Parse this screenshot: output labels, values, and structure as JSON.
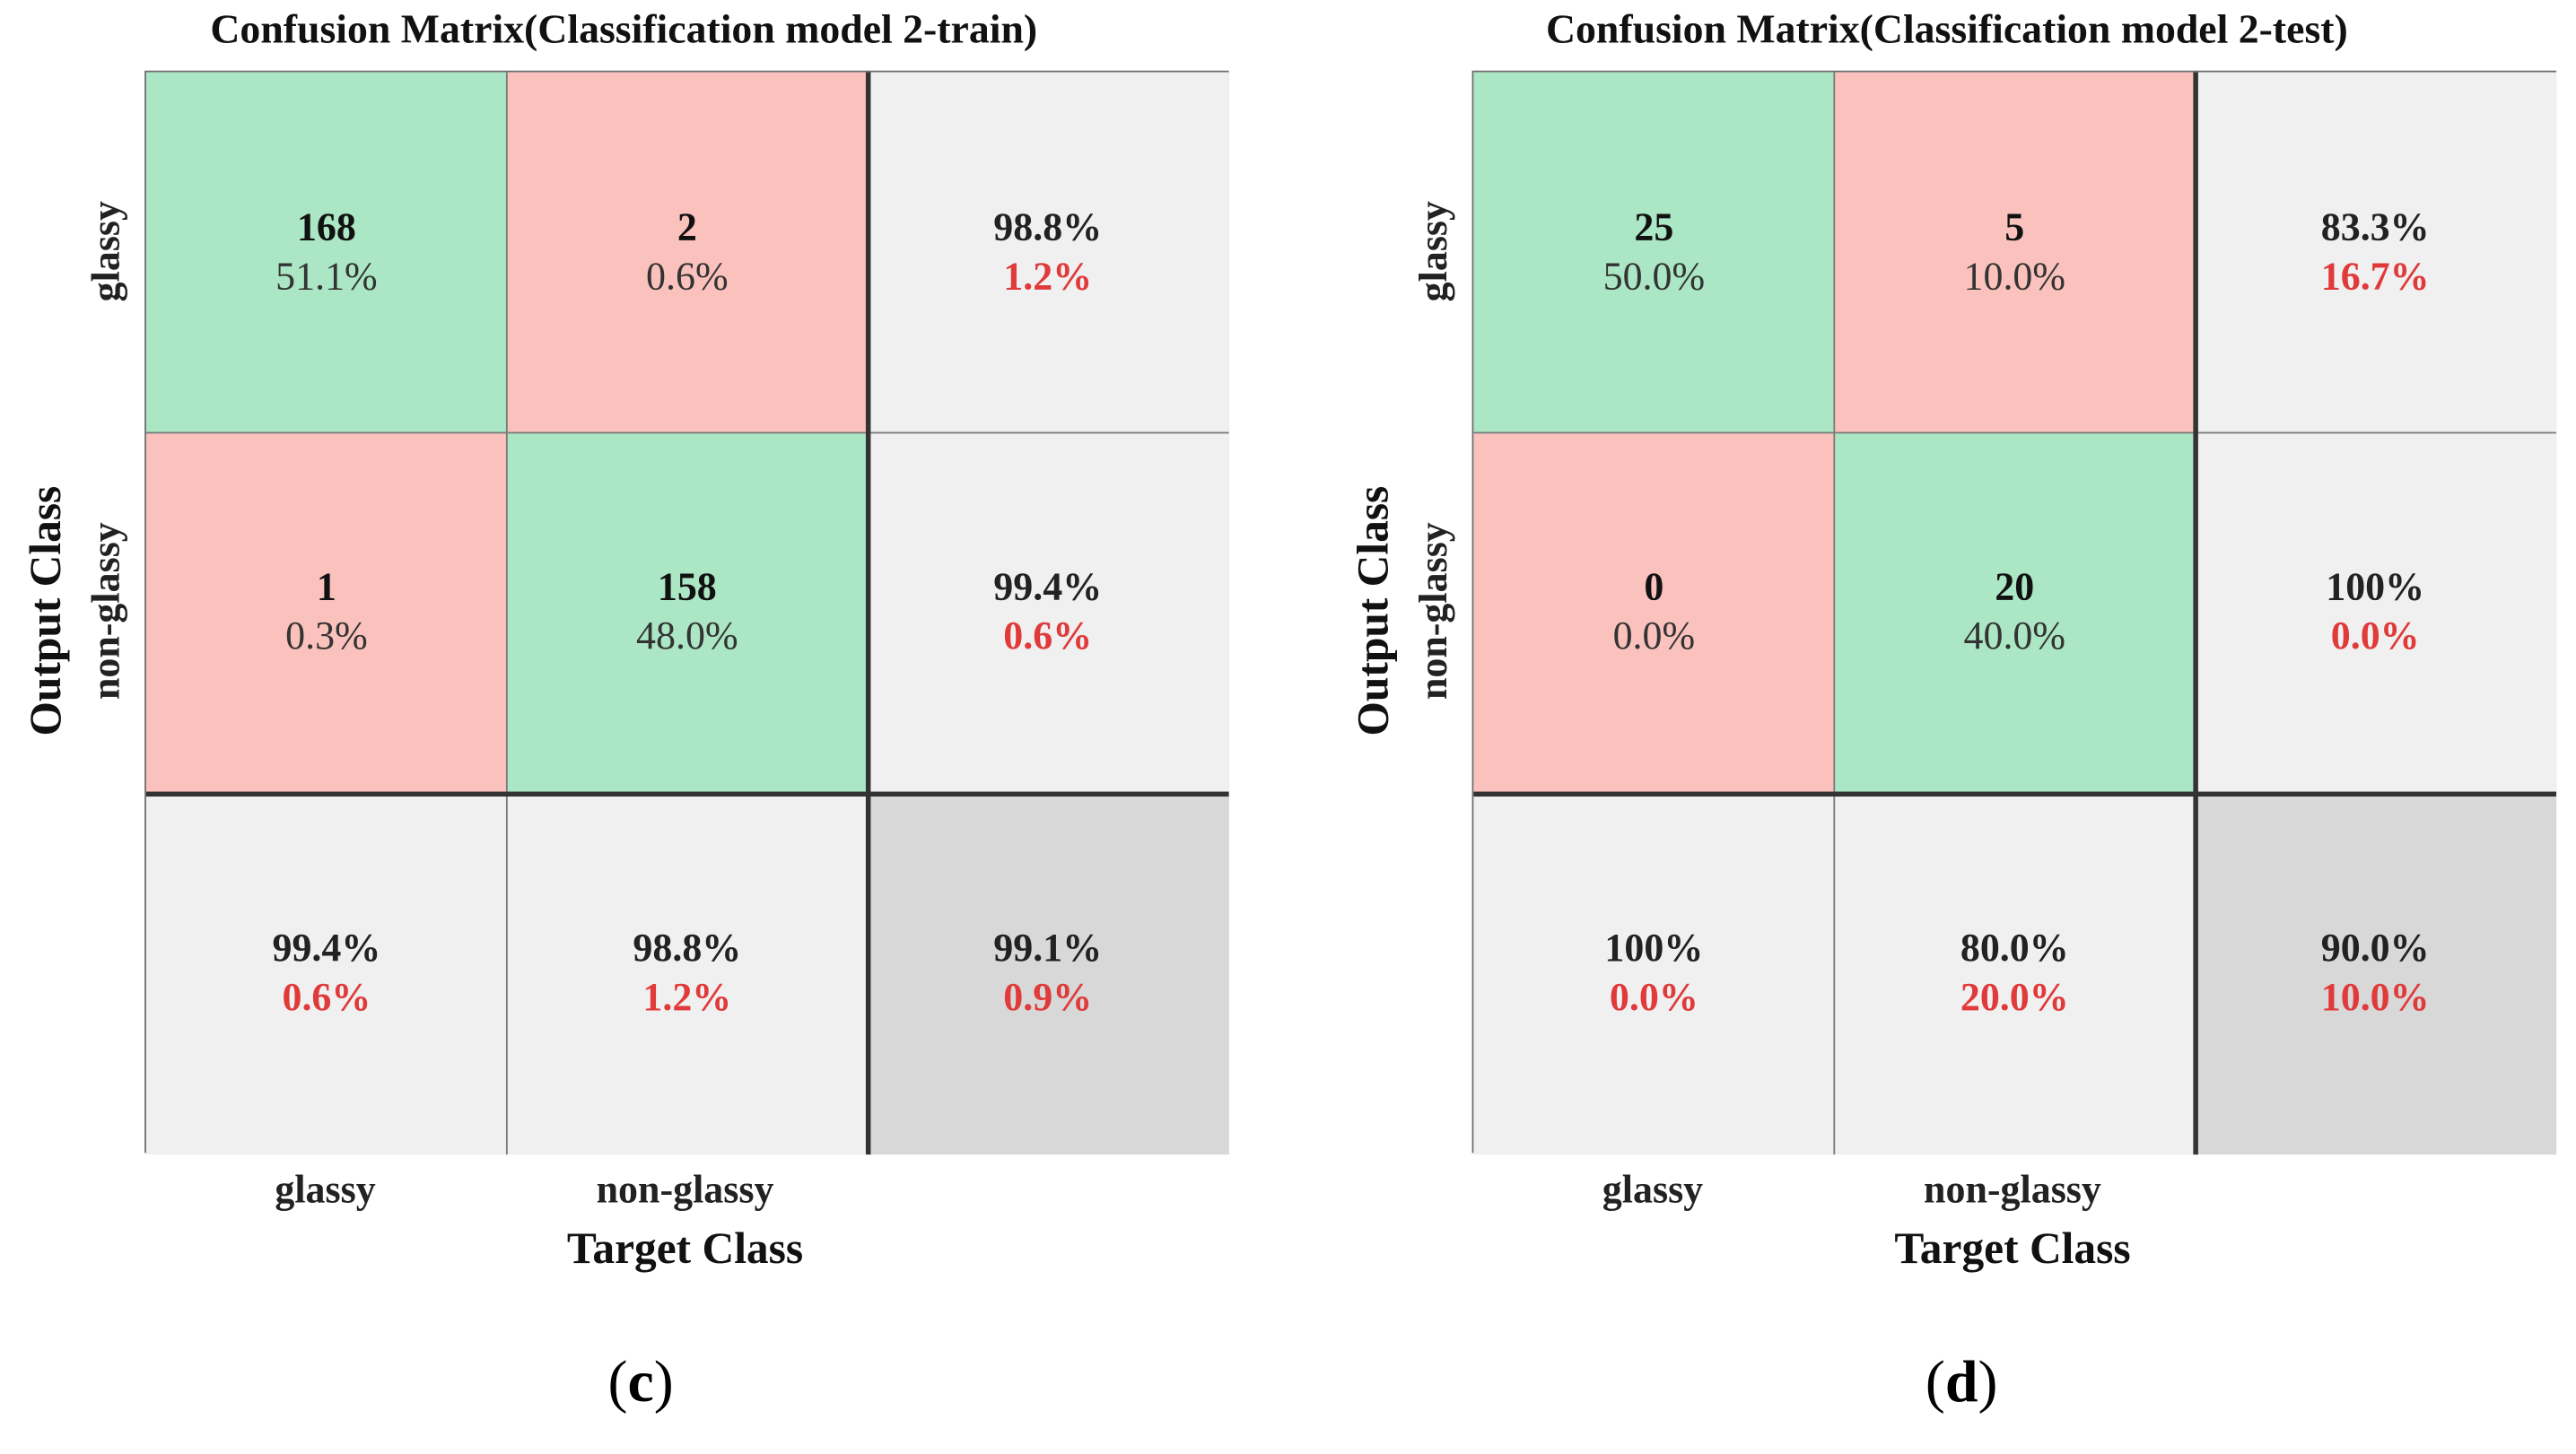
{
  "chart_data": [
    {
      "type": "table",
      "subfigure": "c",
      "title": "Confusion Matrix(Classification model 2-train)",
      "xlabel": "Target Class",
      "ylabel": "Output Class",
      "classes": [
        "glassy",
        "non-glassy"
      ],
      "matrix": [
        [
          {
            "count": "168",
            "pct": "51.1%"
          },
          {
            "count": "2",
            "pct": "0.6%"
          }
        ],
        [
          {
            "count": "1",
            "pct": "0.3%"
          },
          {
            "count": "158",
            "pct": "48.0%"
          }
        ]
      ],
      "row_summary": [
        {
          "good": "98.8%",
          "bad": "1.2%"
        },
        {
          "good": "99.4%",
          "bad": "0.6%"
        }
      ],
      "col_summary": [
        {
          "good": "99.4%",
          "bad": "0.6%"
        },
        {
          "good": "98.8%",
          "bad": "1.2%"
        }
      ],
      "overall": {
        "good": "99.1%",
        "bad": "0.9%"
      }
    },
    {
      "type": "table",
      "subfigure": "d",
      "title": "Confusion Matrix(Classification model  2-test)",
      "xlabel": "Target Class",
      "ylabel": "Output Class",
      "classes": [
        "glassy",
        "non-glassy"
      ],
      "matrix": [
        [
          {
            "count": "25",
            "pct": "50.0%"
          },
          {
            "count": "5",
            "pct": "10.0%"
          }
        ],
        [
          {
            "count": "0",
            "pct": "0.0%"
          },
          {
            "count": "20",
            "pct": "40.0%"
          }
        ]
      ],
      "row_summary": [
        {
          "good": "83.3%",
          "bad": "16.7%"
        },
        {
          "good": "100%",
          "bad": "0.0%"
        }
      ],
      "col_summary": [
        {
          "good": "100%",
          "bad": "0.0%"
        },
        {
          "good": "80.0%",
          "bad": "20.0%"
        }
      ],
      "overall": {
        "good": "90.0%",
        "bad": "10.0%"
      }
    }
  ],
  "colors": {
    "correct": "#abe6c5",
    "wrong": "#fbc2bd",
    "summary": "#f0f0f0",
    "total": "#d8d8d8",
    "error_text": "#e03a3a"
  }
}
